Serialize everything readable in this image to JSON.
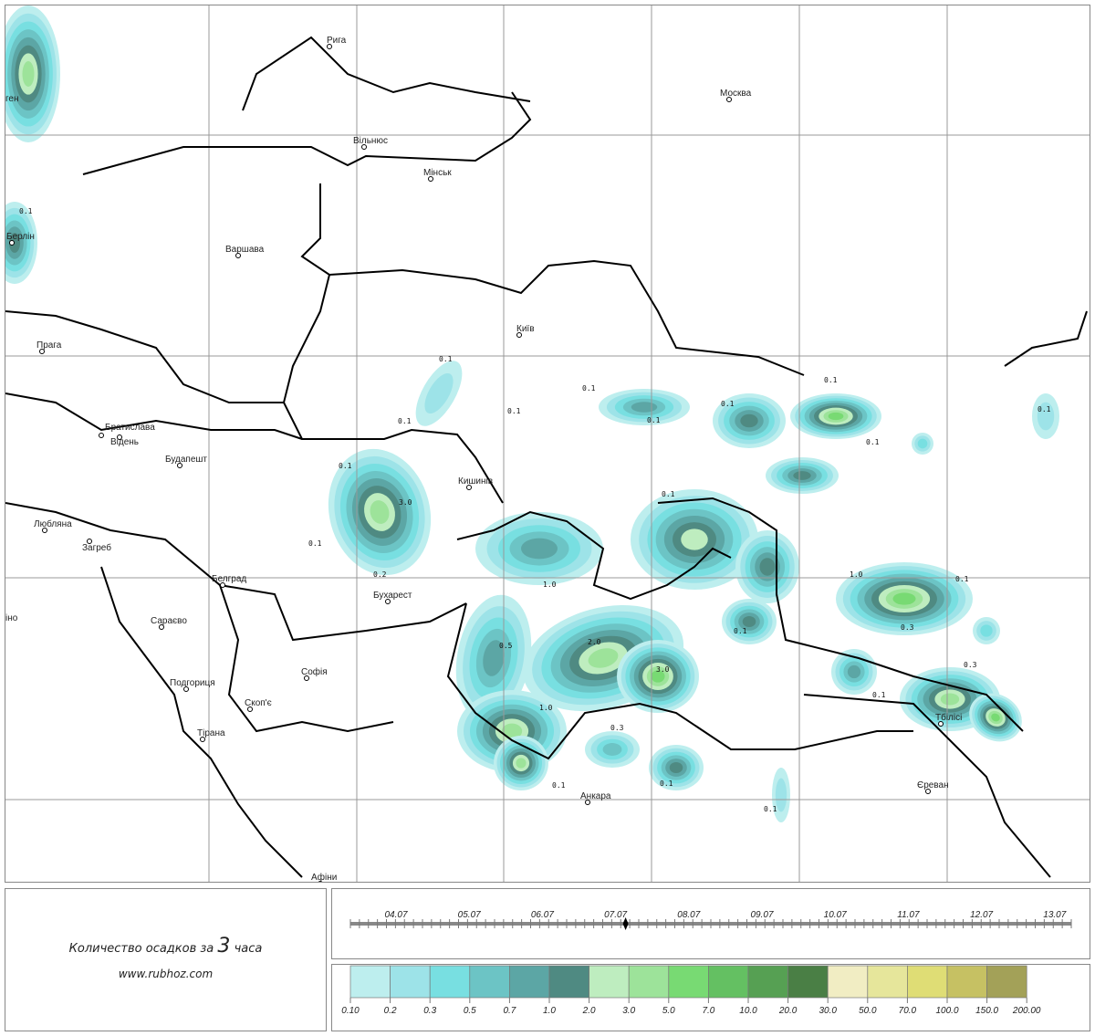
{
  "map": {
    "cities": [
      "Рига",
      "Москва",
      "Вільнюс",
      "Мінськ",
      "Берлін",
      "Варшава",
      "Прага",
      "Київ",
      "Братислава",
      "Відень",
      "Будапешт",
      "Кишинів",
      "Любляна",
      "Загреб",
      "Белград",
      "Бухарест",
      "Сараєво",
      "Софія",
      "Подгориця",
      "Скоп'є",
      "Тірана",
      "Афіни",
      "Анкара",
      "Тбілісі",
      "Єреван",
      "ген",
      "іно"
    ],
    "contour_labels": [
      "0.1",
      "0.1",
      "0.1",
      "0.1",
      "0.1",
      "0.1",
      "0.1",
      "3.0",
      "0.1",
      "0.2",
      "0.1",
      "1.0",
      "0.1",
      "0.1",
      "0.1",
      "1.0",
      "0.1",
      "0.3",
      "0.1",
      "0.5",
      "2.0",
      "3.0",
      "1.0",
      "0.3",
      "0.1",
      "0.1",
      "0.3",
      "0.1",
      "0.1",
      "0.1"
    ]
  },
  "caption": {
    "text_before": "Количество осадков за",
    "hours": "3",
    "text_after": "часа",
    "site": "www.rubhoz.com"
  },
  "timeline": {
    "dates": [
      "04.07",
      "05.07",
      "06.07",
      "07.07",
      "08.07",
      "09.07",
      "10.07",
      "11.07",
      "12.07",
      "13.07"
    ],
    "current": "07.07"
  },
  "legend": {
    "unit_hint": "mm",
    "labels": [
      "0.10",
      "0.2",
      "0.3",
      "0.5",
      "0.7",
      "1.0",
      "2.0",
      "3.0",
      "5.0",
      "7.0",
      "10.0",
      "20.0",
      "30.0",
      "50.0",
      "70.0",
      "100.0",
      "150.0",
      "200.00"
    ],
    "colors": [
      "#bdeeee",
      "#9de3e8",
      "#78dfe1",
      "#6cc4c5",
      "#5ca6a5",
      "#4f8a82",
      "#beedbf",
      "#9de39a",
      "#78da73",
      "#64c062",
      "#56a053",
      "#4a7f45",
      "#f1edc3",
      "#e6e69b",
      "#dfdd75",
      "#c6c163",
      "#a3a158"
    ]
  }
}
